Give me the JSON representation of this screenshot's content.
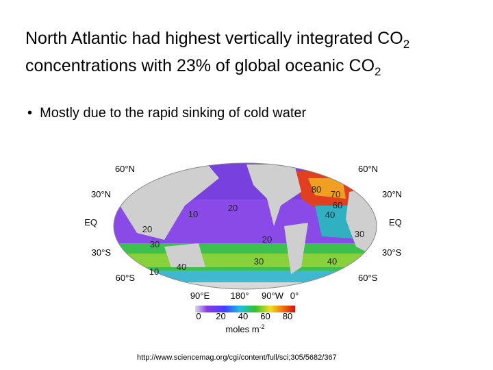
{
  "title": {
    "line1": "North Atlantic had highest vertically integrated CO",
    "sub1": "2",
    "line2": "concentrations with 23% of global oceanic CO",
    "sub2": "2"
  },
  "bullet": "Mostly due to the rapid sinking of cold water",
  "map": {
    "lat_left": [
      "60°N",
      "30°N",
      "EQ",
      "30°S",
      "60°S"
    ],
    "lat_right": [
      "60°N",
      "30°N",
      "EQ",
      "30°S",
      "60°S"
    ],
    "lon": [
      "90°E",
      "180°",
      "90°W",
      "0°"
    ],
    "contours": [
      80,
      70,
      60,
      40,
      20,
      10,
      20,
      30,
      20,
      30,
      30,
      40,
      40,
      10
    ],
    "colorbar_ticks": [
      0,
      20,
      40,
      60,
      80
    ],
    "unit": "moles m",
    "unit_sup": "-2"
  },
  "source": "http://www.sciencemag.org/cgi/content/full/sci;305/5682/367"
}
